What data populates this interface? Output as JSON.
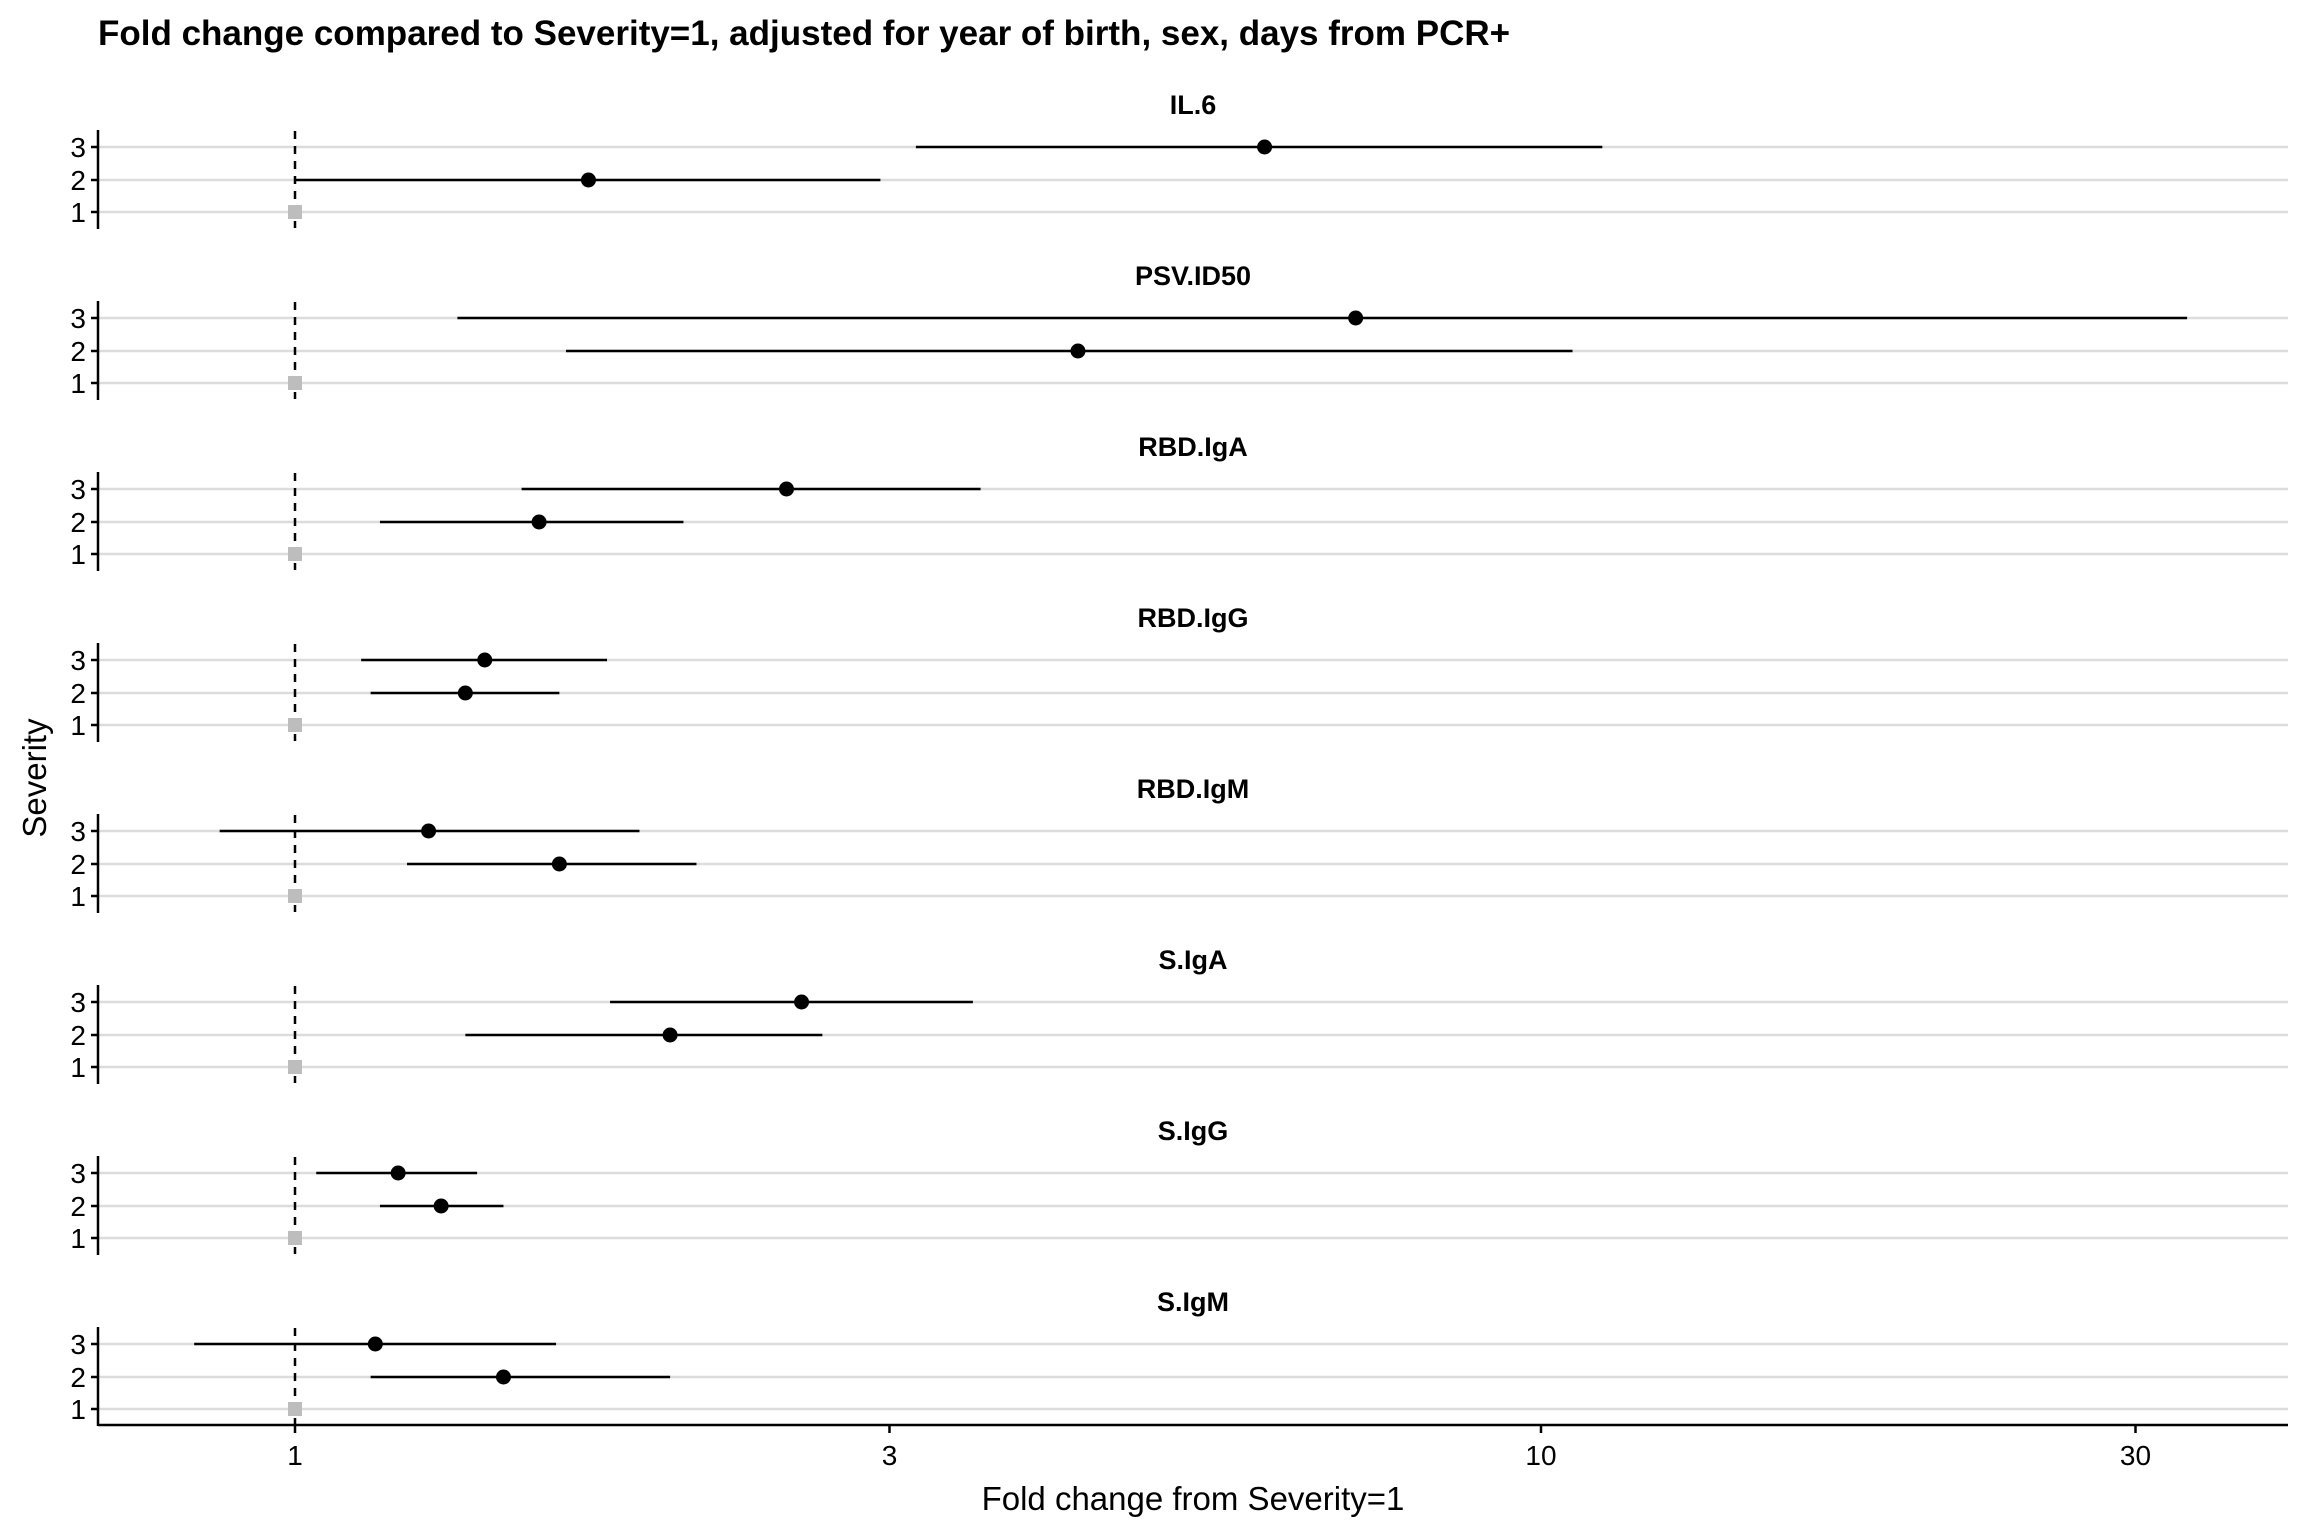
{
  "chart_data": {
    "type": "forest",
    "title": "Fold change compared to Severity=1, adjusted for year of birth, sex, days from PCR+",
    "xlabel": "Fold change from Severity=1",
    "ylabel": "Severity",
    "x_scale": "log",
    "x_ticks": [
      1,
      3,
      10,
      30
    ],
    "xlim": [
      0.72,
      38
    ],
    "reference_line": 1,
    "categories": [
      "3",
      "2",
      "1"
    ],
    "grid": true,
    "colors": {
      "point": "#000000",
      "reference": "#bdbdbd",
      "grid": "#dcdcdc"
    },
    "panels": [
      {
        "name": "IL.6",
        "rows": [
          {
            "severity": "3",
            "estimate": 6.0,
            "lower": 3.15,
            "upper": 11.2
          },
          {
            "severity": "2",
            "estimate": 1.72,
            "lower": 1.0,
            "upper": 2.95
          },
          {
            "severity": "1",
            "estimate": 1,
            "reference": true
          }
        ]
      },
      {
        "name": "PSV.ID50",
        "rows": [
          {
            "severity": "3",
            "estimate": 7.1,
            "lower": 1.35,
            "upper": 33.0
          },
          {
            "severity": "2",
            "estimate": 4.25,
            "lower": 1.65,
            "upper": 10.6
          },
          {
            "severity": "1",
            "estimate": 1,
            "reference": true
          }
        ]
      },
      {
        "name": "RBD.IgA",
        "rows": [
          {
            "severity": "3",
            "estimate": 2.48,
            "lower": 1.52,
            "upper": 3.55
          },
          {
            "severity": "2",
            "estimate": 1.57,
            "lower": 1.17,
            "upper": 2.05
          },
          {
            "severity": "1",
            "estimate": 1,
            "reference": true
          }
        ]
      },
      {
        "name": "RBD.IgG",
        "rows": [
          {
            "severity": "3",
            "estimate": 1.42,
            "lower": 1.13,
            "upper": 1.78
          },
          {
            "severity": "2",
            "estimate": 1.37,
            "lower": 1.15,
            "upper": 1.63
          },
          {
            "severity": "1",
            "estimate": 1,
            "reference": true
          }
        ]
      },
      {
        "name": "RBD.IgM",
        "rows": [
          {
            "severity": "3",
            "estimate": 1.28,
            "lower": 0.87,
            "upper": 1.89
          },
          {
            "severity": "2",
            "estimate": 1.63,
            "lower": 1.23,
            "upper": 2.1
          },
          {
            "severity": "1",
            "estimate": 1,
            "reference": true
          }
        ]
      },
      {
        "name": "S.IgA",
        "rows": [
          {
            "severity": "3",
            "estimate": 2.55,
            "lower": 1.79,
            "upper": 3.5
          },
          {
            "severity": "2",
            "estimate": 2.0,
            "lower": 1.37,
            "upper": 2.65
          },
          {
            "severity": "1",
            "estimate": 1,
            "reference": true
          }
        ]
      },
      {
        "name": "S.IgG",
        "rows": [
          {
            "severity": "3",
            "estimate": 1.21,
            "lower": 1.04,
            "upper": 1.4
          },
          {
            "severity": "2",
            "estimate": 1.31,
            "lower": 1.17,
            "upper": 1.47
          },
          {
            "severity": "1",
            "estimate": 1,
            "reference": true
          }
        ]
      },
      {
        "name": "S.IgM",
        "rows": [
          {
            "severity": "3",
            "estimate": 1.16,
            "lower": 0.83,
            "upper": 1.62
          },
          {
            "severity": "2",
            "estimate": 1.47,
            "lower": 1.15,
            "upper": 2.0
          },
          {
            "severity": "1",
            "estimate": 1,
            "reference": true
          }
        ]
      }
    ]
  }
}
